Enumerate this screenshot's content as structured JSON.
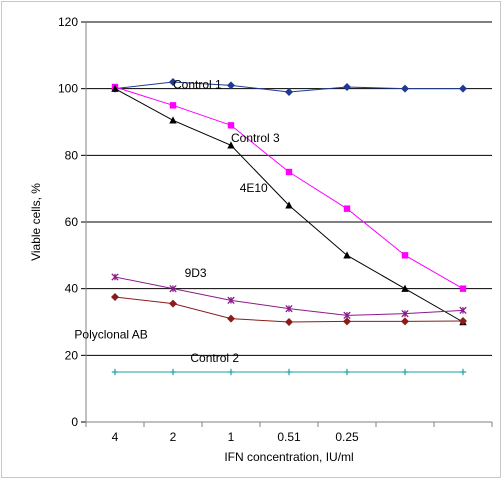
{
  "chart_data": {
    "type": "line",
    "xlabel": "IFN concentration, IU/ml",
    "ylabel": "Viable cells, %",
    "ylim": [
      0,
      120
    ],
    "y_ticks": [
      0,
      20,
      40,
      60,
      80,
      100,
      120
    ],
    "grid": "horizontal",
    "x_points": 7,
    "x_tick_labels": [
      {
        "label": "4",
        "pos": 0.5
      },
      {
        "label": "2",
        "pos": 1.5
      },
      {
        "label": "1",
        "pos": 2.5
      },
      {
        "label": "0.51",
        "pos": 3.5
      },
      {
        "label": "0.25",
        "pos": 4.5
      }
    ],
    "series": [
      {
        "name": "Control 1",
        "color": "#1f3a93",
        "marker": "diamond",
        "values": [
          100,
          102,
          101,
          99,
          100.5,
          100,
          100
        ],
        "label_at": [
          1.0,
          100
        ]
      },
      {
        "name": "Control 3",
        "color": "#ff00ff",
        "marker": "square",
        "values": [
          100.5,
          95,
          89,
          75,
          64,
          50,
          40
        ],
        "label_at": [
          2.0,
          84
        ]
      },
      {
        "name": "4E10",
        "color": "#000000",
        "marker": "triangle",
        "values": [
          100,
          90.5,
          83,
          65,
          50,
          40,
          30
        ],
        "label_at": [
          2.15,
          69
        ]
      },
      {
        "name": "9D3",
        "color": "#8b1a8b",
        "marker": "star",
        "values": [
          43.5,
          40,
          36.5,
          34,
          32,
          32.5,
          33.5
        ],
        "label_at": [
          1.2,
          43.5
        ]
      },
      {
        "name": "Polyclonal AB",
        "color": "#8b1c1c",
        "marker": "diamond",
        "values": [
          37.5,
          35.5,
          31,
          30,
          30.2,
          30.2,
          30.3
        ],
        "label_at": [
          -0.7,
          25
        ]
      },
      {
        "name": "Control 2",
        "color": "#20a0a0",
        "marker": "plus",
        "values": [
          15,
          15,
          15,
          15,
          15,
          15,
          15
        ],
        "label_at": [
          1.3,
          18
        ]
      }
    ]
  }
}
